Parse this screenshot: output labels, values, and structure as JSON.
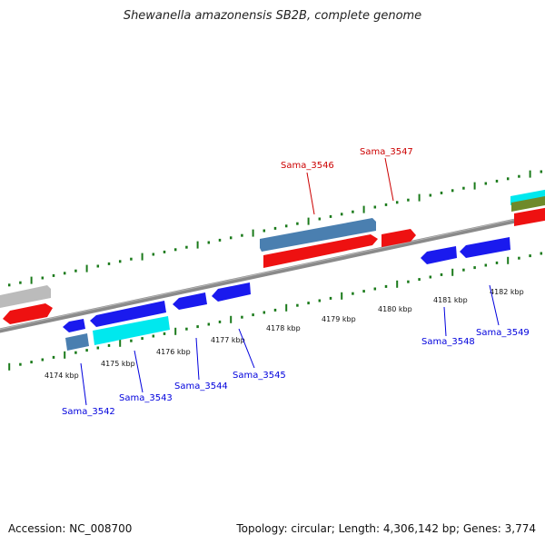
{
  "title": "Shewanella amazonensis SB2B, complete genome",
  "footer": {
    "accession": "Accession: NC_008700",
    "summary": "Topology: circular; Length: 4,306,142 bp; Genes: 3,774"
  },
  "ruler": {
    "ticks": [
      "4174 kbp",
      "4175 kbp",
      "4176 kbp",
      "4177 kbp",
      "4178 kbp",
      "4179 kbp",
      "4180 kbp",
      "4181 kbp",
      "4182 kbp"
    ]
  },
  "colors": {
    "forward_strand": "#0000dd",
    "reverse_strand": "#cc0000",
    "tick_green": "#1a7a1a",
    "cds_red": "#ee1111",
    "cds_blue": "#1a1aee",
    "cds_steel": "#4a7fb0",
    "cds_cyan": "#00e8ee",
    "cds_gray": "#bbbbbb",
    "cds_olive": "#6f8a2a"
  },
  "genes": [
    {
      "name": "Sama_3542",
      "strand": "forward"
    },
    {
      "name": "Sama_3543",
      "strand": "forward"
    },
    {
      "name": "Sama_3544",
      "strand": "forward"
    },
    {
      "name": "Sama_3545",
      "strand": "forward"
    },
    {
      "name": "Sama_3546",
      "strand": "reverse"
    },
    {
      "name": "Sama_3547",
      "strand": "reverse"
    },
    {
      "name": "Sama_3548",
      "strand": "forward"
    },
    {
      "name": "Sama_3549",
      "strand": "forward"
    }
  ]
}
